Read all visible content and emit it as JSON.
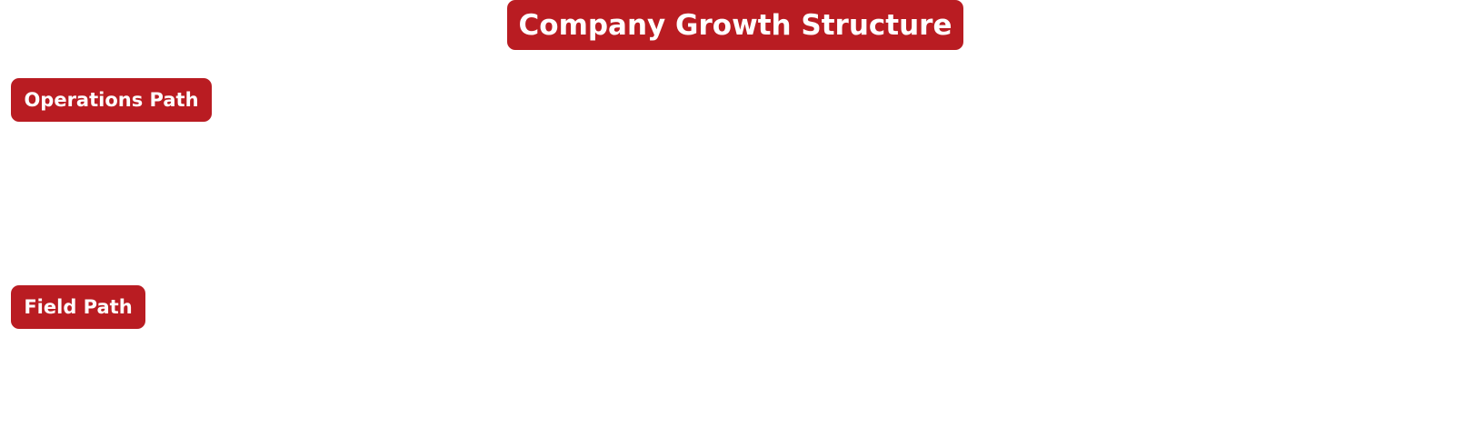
{
  "colors": {
    "pill_background": "#B91C22",
    "pill_text": "#FFFFFF",
    "canvas_background": "#FFFFFF"
  },
  "title": "Company Growth Structure",
  "sections": {
    "operations": "Operations Path",
    "field": "Field Path"
  }
}
